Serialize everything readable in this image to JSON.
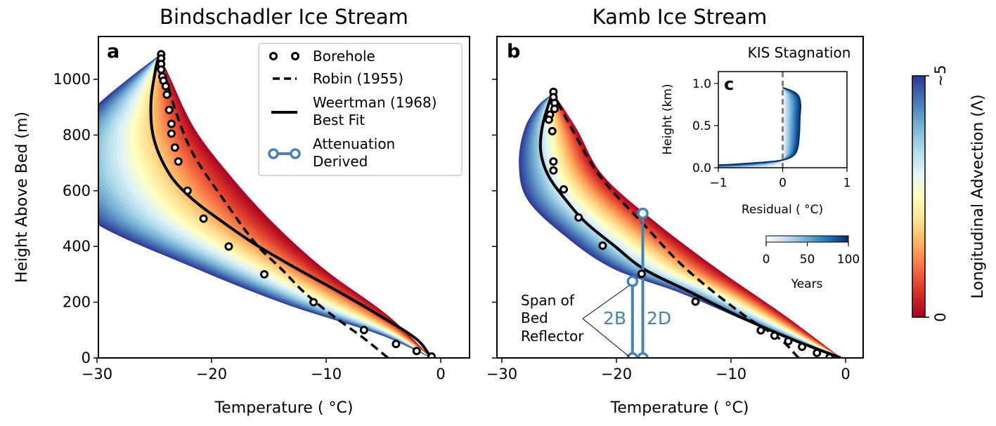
{
  "colormap_main": [
    "#a50026",
    "#d73027",
    "#f46d43",
    "#fdae61",
    "#fee090",
    "#ffffbf",
    "#e0f3f8",
    "#abd9e9",
    "#74add1",
    "#4575b4",
    "#313695"
  ],
  "colormap_years": [
    "#f7fbff",
    "#c6dbef",
    "#6baed6",
    "#2171b5",
    "#08306b"
  ],
  "attenuation_color": "#4682b4",
  "colorbar": {
    "label": "Longitudinal Advection (Λ)",
    "top_label": "∼5",
    "bottom_label": "0"
  },
  "legend": {
    "borehole": "Borehole",
    "robin": "Robin (1955)",
    "weertman_1": "Weertman (1968)",
    "weertman_2": "Best Fit",
    "atten_1": "Attenuation",
    "atten_2": "Derived"
  },
  "annotation": {
    "line1": "Span of",
    "line2": "Bed",
    "line3": "Reflector",
    "b": "2B",
    "d": "2D"
  },
  "chart_data": [
    {
      "type": "line",
      "panel": "a",
      "title": "Bindschadler Ice Stream",
      "xlabel": "Temperature ( °C)",
      "ylabel": "Height Above Bed (m)",
      "xlim": [
        -30,
        2.5
      ],
      "ylim": [
        0,
        1150
      ],
      "xticks": [
        -30,
        -20,
        -10,
        0
      ],
      "xtick_labels": [
        "−30",
        "−20",
        "−10",
        "0"
      ],
      "yticks": [
        0,
        200,
        400,
        600,
        800,
        1000
      ],
      "ytick_labels": [
        "0",
        "200",
        "400",
        "600",
        "800",
        "1000"
      ],
      "legend_position": "top-right",
      "borehole": {
        "T": [
          -24.4,
          -24.4,
          -24.4,
          -24.4,
          -24.3,
          -24.2,
          -24.0,
          -23.9,
          -23.7,
          -23.5,
          -23.5,
          -23.2,
          -22.9,
          -22.1,
          -20.7,
          -18.5,
          -15.4,
          -11.1,
          -6.7,
          -3.9,
          -2.1,
          -0.8
        ],
        "h": [
          1090,
          1075,
          1055,
          1035,
          1010,
          995,
          975,
          945,
          890,
          840,
          805,
          755,
          705,
          600,
          500,
          400,
          300,
          200,
          100,
          50,
          25,
          5
        ]
      },
      "robin": {
        "h": [
          1085,
          907,
          739,
          571,
          403,
          319,
          235,
          151,
          67,
          0
        ],
        "T": [
          -24.5,
          -23.3,
          -21.7,
          -19.0,
          -16.0,
          -13.9,
          -11.9,
          -9.4,
          -6.6,
          -4.6
        ]
      },
      "weertman": {
        "h": [
          1085,
          1033,
          907,
          781,
          655,
          571,
          487,
          403,
          319,
          235,
          151,
          67,
          0
        ],
        "T": [
          -24.6,
          -24.9,
          -25.3,
          -25.0,
          -23.6,
          -21.7,
          -19.0,
          -16.0,
          -12.5,
          -8.8,
          -5.3,
          -2.1,
          -0.8
        ]
      },
      "advection_lambda_0": {
        "h": [
          1085,
          1033,
          823,
          655,
          487,
          319,
          151,
          0
        ],
        "T": [
          -24.6,
          -23.95,
          -21.5,
          -18.4,
          -14.7,
          -10.2,
          -4.6,
          -0.8
        ]
      },
      "advection_lambda_5": {
        "h": [
          1085,
          1000,
          907,
          800,
          700,
          600,
          480,
          327,
          193,
          84,
          0
        ],
        "T": [
          -24.6,
          -27.3,
          -30.0,
          -32.5,
          -33.5,
          -33.0,
          -30.0,
          -21.7,
          -13.5,
          -5.3,
          -0.8
        ]
      }
    },
    {
      "type": "line",
      "panel": "b",
      "title": "Kamb Ice Stream",
      "xlabel": "Temperature ( °C)",
      "xlim": [
        -30,
        2.5
      ],
      "ylim": [
        0,
        1150
      ],
      "xticks": [
        -30,
        -20,
        -10,
        0
      ],
      "xtick_labels": [
        "−30",
        "−20",
        "−10",
        "0"
      ],
      "yticks": [
        0,
        200,
        400,
        600,
        800,
        1000
      ],
      "borehole": {
        "T": [
          -25.5,
          -25.5,
          -25.4,
          -25.4,
          -25.8,
          -25.9,
          -25.6,
          -25.5,
          -25.5,
          -24.6,
          -23.3,
          -21.2,
          -17.8,
          -13.1,
          -7.4,
          -6.2,
          -5.0,
          -3.8,
          -2.5,
          -1.4
        ],
        "h": [
          955,
          936,
          915,
          894,
          873,
          855,
          814,
          705,
          673,
          605,
          504,
          403,
          302,
          202,
          99,
          80,
          60,
          40,
          18,
          2
        ]
      },
      "robin": {
        "h": [
          930,
          823,
          655,
          487,
          319,
          151,
          67,
          0
        ],
        "T": [
          -25.3,
          -23.9,
          -21.5,
          -17.8,
          -13.9,
          -8.8,
          -5.7,
          -4.1
        ]
      },
      "weertman": {
        "h": [
          945,
          907,
          823,
          739,
          655,
          571,
          487,
          403,
          319,
          235,
          151,
          67,
          0
        ],
        "T": [
          -25.6,
          -25.95,
          -26.5,
          -26.6,
          -25.95,
          -24.5,
          -22.7,
          -20.2,
          -17.6,
          -13.5,
          -9.4,
          -4.7,
          -0.4
        ]
      },
      "advection_lambda_0": {
        "h": [
          950,
          823,
          655,
          487,
          319,
          151,
          0
        ],
        "T": [
          -25.5,
          -23.5,
          -21.2,
          -16.6,
          -11.2,
          -5.3,
          -0.4
        ]
      },
      "advection_lambda_5": {
        "h": [
          950,
          907,
          823,
          697,
          571,
          445,
          319,
          235,
          109,
          0
        ],
        "T": [
          -25.5,
          -26.8,
          -28.0,
          -28.5,
          -27.8,
          -24.7,
          -20.2,
          -14.5,
          -7.3,
          -0.4
        ]
      },
      "attenuation": [
        {
          "label": "2B",
          "T": -18.6,
          "h": [
            0,
            275
          ]
        },
        {
          "label": "2D",
          "T": -17.7,
          "h": [
            0,
            519
          ]
        }
      ]
    },
    {
      "type": "line",
      "panel": "c",
      "title": "KIS Stagnation",
      "xlabel": "Residual ( °C)",
      "ylabel": "Height (km)",
      "xlim": [
        -1,
        1
      ],
      "ylim": [
        0,
        1.14
      ],
      "xticks": [
        -1,
        0,
        1
      ],
      "xtick_labels": [
        "−1",
        "0",
        "1"
      ],
      "yticks": [
        0,
        0.5,
        1.0
      ],
      "ytick_labels": [
        "0.0",
        "0.5",
        "1.0"
      ],
      "residual_100_years": {
        "h": [
          0.0,
          0.03,
          0.05,
          0.08,
          0.12,
          0.2,
          0.4,
          0.6,
          0.75,
          0.85,
          0.9,
          0.94,
          0.95
        ],
        "r": [
          -3.0,
          -1.1,
          -0.6,
          -0.1,
          0.12,
          0.22,
          0.26,
          0.27,
          0.28,
          0.25,
          0.18,
          0.05,
          0.0
        ]
      },
      "colorbar": {
        "label": "Years",
        "ticks": [
          0,
          50,
          100
        ],
        "tick_labels": [
          "0",
          "50",
          "100"
        ]
      }
    }
  ]
}
